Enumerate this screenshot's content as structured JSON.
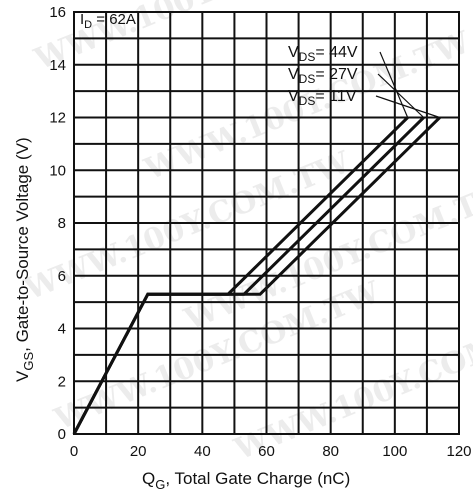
{
  "chart_data": {
    "type": "line",
    "xlabel_main": "Q",
    "xlabel_sub": "G",
    "xlabel_rest": ", Total Gate Charge (nC)",
    "ylabel_main": "V",
    "ylabel_sub": "GS",
    "ylabel_rest": ", Gate-to-Source Voltage (V)",
    "xlim": [
      0,
      120
    ],
    "ylim": [
      0,
      16
    ],
    "xticks": [
      "0",
      "20",
      "40",
      "60",
      "80",
      "100",
      "120"
    ],
    "yticks": [
      "0",
      "2",
      "4",
      "6",
      "8",
      "10",
      "12",
      "14",
      "16"
    ],
    "grid": true,
    "condition": {
      "main": "I",
      "sub": "D",
      "rest": " = 62A"
    },
    "series": [
      {
        "name": "V_DS= 44V",
        "label_main": "V",
        "label_sub": "DS",
        "label_rest": "= 44V",
        "x": [
          0,
          23,
          48,
          104
        ],
        "y": [
          0,
          5.3,
          5.3,
          12
        ]
      },
      {
        "name": "V_DS= 27V",
        "label_main": "V",
        "label_sub": "DS",
        "label_rest": "= 27V",
        "x": [
          0,
          23,
          53,
          109
        ],
        "y": [
          0,
          5.3,
          5.3,
          12
        ]
      },
      {
        "name": "V_DS= 11V",
        "label_main": "V",
        "label_sub": "DS",
        "label_rest": "= 11V",
        "x": [
          0,
          23,
          58,
          114
        ],
        "y": [
          0,
          5.3,
          5.3,
          12
        ]
      }
    ],
    "line_color": "#111111",
    "watermark": "WWW.100Y.COM.TW"
  }
}
